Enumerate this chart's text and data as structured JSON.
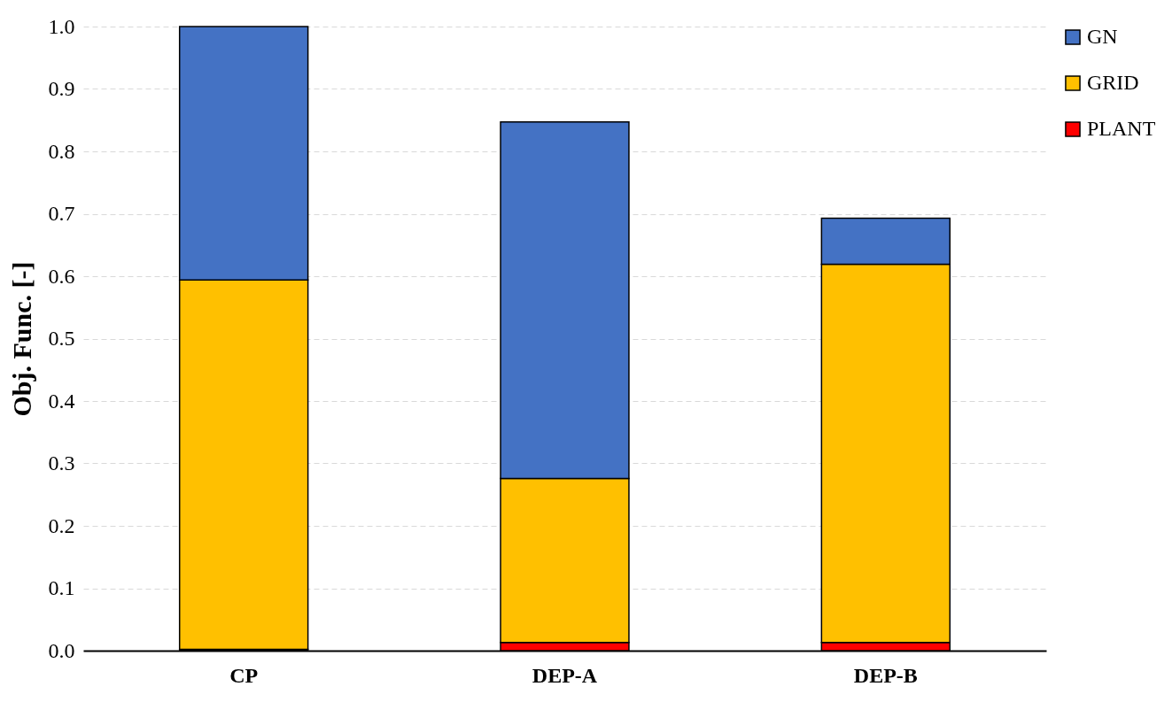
{
  "chart_data": {
    "type": "bar",
    "stacked": true,
    "ylabel": "Obj. Func. [-]",
    "categories": [
      "CP",
      "DEP-A",
      "DEP-B"
    ],
    "series": [
      {
        "name": "PLANT",
        "color": "#ff0000",
        "values": [
          0.002,
          0.013,
          0.013
        ]
      },
      {
        "name": "GRID",
        "color": "#ffc000",
        "values": [
          0.592,
          0.263,
          0.606
        ]
      },
      {
        "name": "GN",
        "color": "#4472c4",
        "values": [
          0.406,
          0.571,
          0.074
        ]
      }
    ],
    "ylim": [
      0,
      1
    ],
    "yticks": [
      {
        "value": 0,
        "label": "0.0"
      },
      {
        "value": 0.1,
        "label": "0.1"
      },
      {
        "value": 0.2,
        "label": "0.2"
      },
      {
        "value": 0.3,
        "label": "0.3"
      },
      {
        "value": 0.4,
        "label": "0.4"
      },
      {
        "value": 0.5,
        "label": "0.5"
      },
      {
        "value": 0.6,
        "label": "0.6"
      },
      {
        "value": 0.7,
        "label": "0.7"
      },
      {
        "value": 0.8,
        "label": "0.8"
      },
      {
        "value": 0.9,
        "label": "0.9"
      },
      {
        "value": 1,
        "label": "1.0"
      }
    ],
    "grid": "y",
    "legend": "right"
  }
}
